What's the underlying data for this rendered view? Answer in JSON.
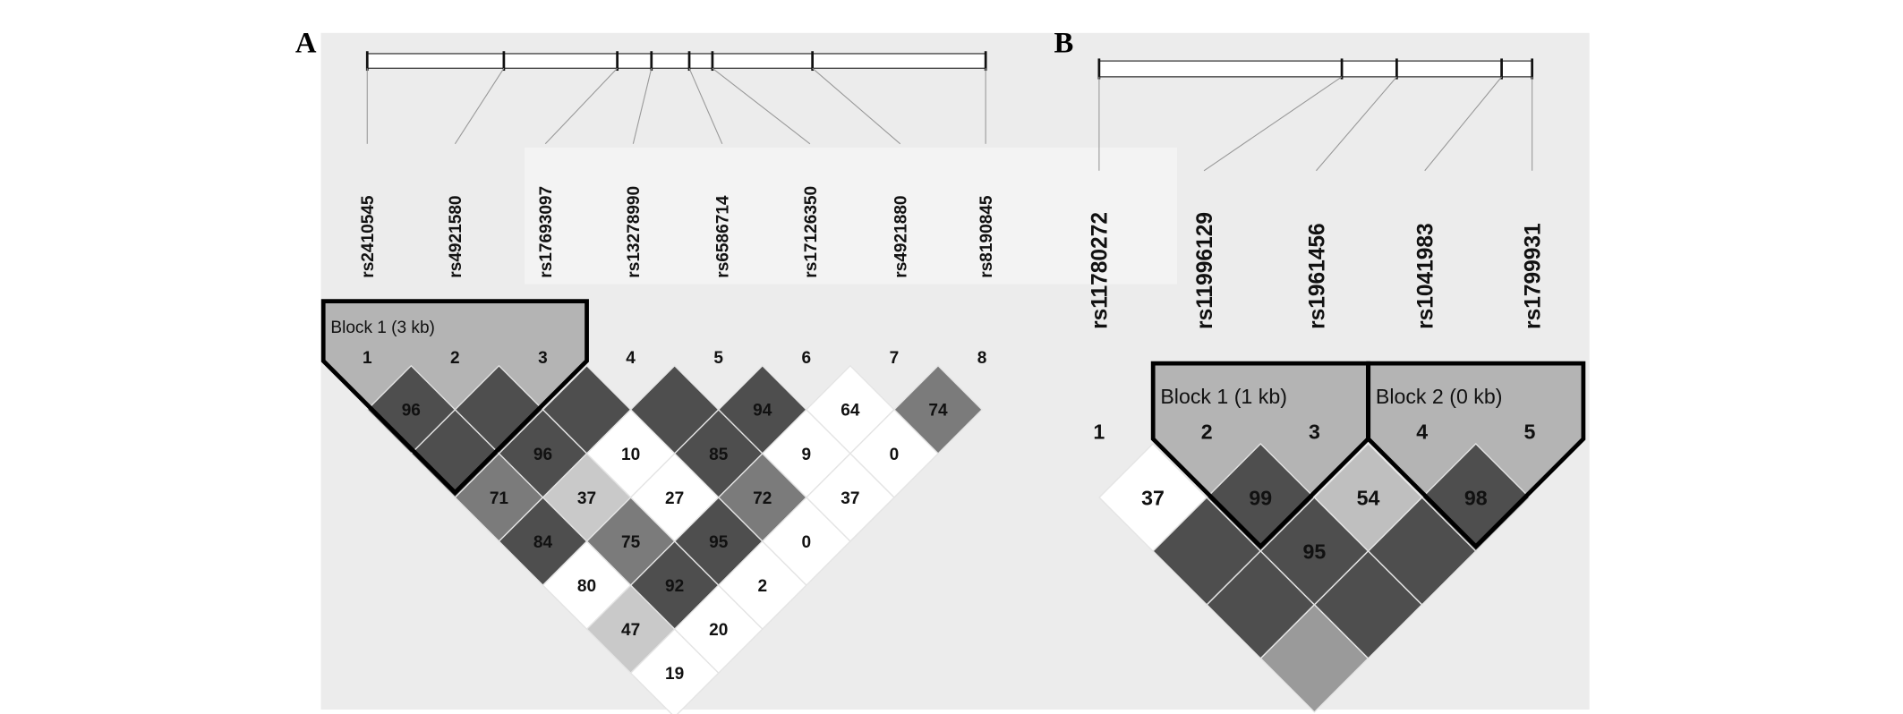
{
  "shade_colors": {
    "dark": "#4e4e4e",
    "mid": "#7b7b7b",
    "light": "#c9c9c9",
    "lightB": "#bfbfbf",
    "midB": "#9a9a9a",
    "white": "#ffffff"
  },
  "block_fill": "#b4b4b4",
  "background": "#ececec",
  "panels": [
    {
      "letter": "A",
      "markers": [
        "rs2410545",
        "rs4921580",
        "rs17693097",
        "rs13278990",
        "rs6586714",
        "rs17126350",
        "rs4921880",
        "rs8190845"
      ],
      "marker_numbers": [
        "1",
        "2",
        "3",
        "4",
        "5",
        "6",
        "7",
        "8"
      ],
      "blocks": [
        {
          "label": "Block 1 (3 kb)",
          "from": 1,
          "to": 3
        }
      ],
      "cells": [
        {
          "i": 1,
          "j": 2,
          "value": "96",
          "shade": "dark"
        },
        {
          "i": 2,
          "j": 3,
          "value": "",
          "shade": "dark"
        },
        {
          "i": 3,
          "j": 4,
          "value": "",
          "shade": "dark"
        },
        {
          "i": 4,
          "j": 5,
          "value": "",
          "shade": "dark"
        },
        {
          "i": 5,
          "j": 6,
          "value": "94",
          "shade": "dark"
        },
        {
          "i": 6,
          "j": 7,
          "value": "64",
          "shade": "white"
        },
        {
          "i": 7,
          "j": 8,
          "value": "74",
          "shade": "mid"
        },
        {
          "i": 1,
          "j": 3,
          "value": "",
          "shade": "dark"
        },
        {
          "i": 2,
          "j": 4,
          "value": "96",
          "shade": "dark"
        },
        {
          "i": 3,
          "j": 5,
          "value": "10",
          "shade": "white"
        },
        {
          "i": 4,
          "j": 6,
          "value": "85",
          "shade": "dark"
        },
        {
          "i": 5,
          "j": 7,
          "value": "9",
          "shade": "white"
        },
        {
          "i": 6,
          "j": 8,
          "value": "0",
          "shade": "white"
        },
        {
          "i": 1,
          "j": 4,
          "value": "71",
          "shade": "mid"
        },
        {
          "i": 2,
          "j": 5,
          "value": "37",
          "shade": "light"
        },
        {
          "i": 3,
          "j": 6,
          "value": "27",
          "shade": "white"
        },
        {
          "i": 4,
          "j": 7,
          "value": "72",
          "shade": "mid"
        },
        {
          "i": 5,
          "j": 8,
          "value": "37",
          "shade": "white"
        },
        {
          "i": 1,
          "j": 5,
          "value": "84",
          "shade": "dark"
        },
        {
          "i": 2,
          "j": 6,
          "value": "75",
          "shade": "mid"
        },
        {
          "i": 3,
          "j": 7,
          "value": "95",
          "shade": "dark"
        },
        {
          "i": 4,
          "j": 8,
          "value": "0",
          "shade": "white"
        },
        {
          "i": 1,
          "j": 6,
          "value": "80",
          "shade": "white"
        },
        {
          "i": 2,
          "j": 7,
          "value": "92",
          "shade": "dark"
        },
        {
          "i": 3,
          "j": 8,
          "value": "2",
          "shade": "white"
        },
        {
          "i": 1,
          "j": 7,
          "value": "47",
          "shade": "light"
        },
        {
          "i": 2,
          "j": 8,
          "value": "20",
          "shade": "white"
        },
        {
          "i": 1,
          "j": 8,
          "value": "19",
          "shade": "white"
        }
      ]
    },
    {
      "letter": "B",
      "markers": [
        "rs11780272",
        "rs11996129",
        "rs1961456",
        "rs1041983",
        "rs1799931"
      ],
      "marker_numbers": [
        "1",
        "2",
        "3",
        "4",
        "5"
      ],
      "blocks": [
        {
          "label": "Block 1 (1 kb)",
          "from": 2,
          "to": 3
        },
        {
          "label": "Block 2 (0 kb)",
          "from": 4,
          "to": 5
        }
      ],
      "cells": [
        {
          "i": 1,
          "j": 2,
          "value": "37",
          "shade": "white"
        },
        {
          "i": 2,
          "j": 3,
          "value": "99",
          "shade": "dark"
        },
        {
          "i": 3,
          "j": 4,
          "value": "54",
          "shade": "lightB"
        },
        {
          "i": 4,
          "j": 5,
          "value": "98",
          "shade": "dark"
        },
        {
          "i": 1,
          "j": 3,
          "value": "",
          "shade": "dark"
        },
        {
          "i": 2,
          "j": 4,
          "value": "95",
          "shade": "dark"
        },
        {
          "i": 3,
          "j": 5,
          "value": "",
          "shade": "dark"
        },
        {
          "i": 1,
          "j": 4,
          "value": "",
          "shade": "dark"
        },
        {
          "i": 2,
          "j": 5,
          "value": "",
          "shade": "dark"
        },
        {
          "i": 1,
          "j": 5,
          "value": "",
          "shade": "midB"
        }
      ]
    }
  ]
}
